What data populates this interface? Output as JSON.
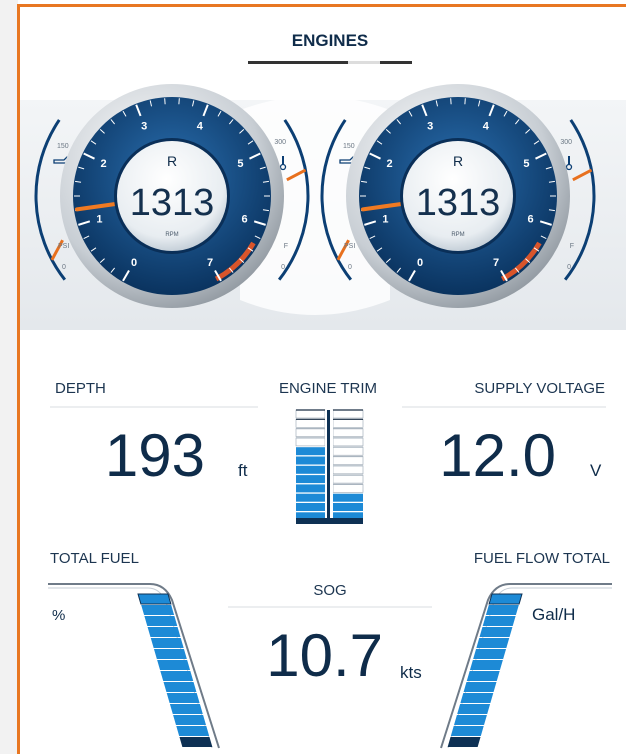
{
  "header": {
    "title": "ENGINES"
  },
  "gauges": [
    {
      "label": "R",
      "value": "1313",
      "unit": "RPM",
      "scale": [
        0,
        1,
        2,
        3,
        4,
        5,
        6,
        7
      ],
      "left_max": "150",
      "left_unit": "PSI",
      "left_min": "0",
      "right_max": "300",
      "right_unit": "F",
      "right_min": "0"
    },
    {
      "label": "R",
      "value": "1313",
      "unit": "RPM",
      "scale": [
        0,
        1,
        2,
        3,
        4,
        5,
        6,
        7
      ],
      "left_max": "150",
      "left_unit": "PSI",
      "left_min": "0",
      "right_max": "300",
      "right_unit": "F",
      "right_min": "0"
    }
  ],
  "readouts": {
    "depth": {
      "label": "DEPTH",
      "value": "193",
      "unit": "ft"
    },
    "trim": {
      "label": "ENGINE TRIM"
    },
    "voltage": {
      "label": "SUPPLY VOLTAGE",
      "value": "12.0",
      "unit": "V"
    },
    "fuel": {
      "label": "TOTAL FUEL",
      "unit": "%"
    },
    "sog": {
      "label": "SOG",
      "value": "10.7",
      "unit": "kts"
    },
    "fuel_flow": {
      "label": "FUEL FLOW TOTAL",
      "unit": "Gal/H"
    }
  }
}
